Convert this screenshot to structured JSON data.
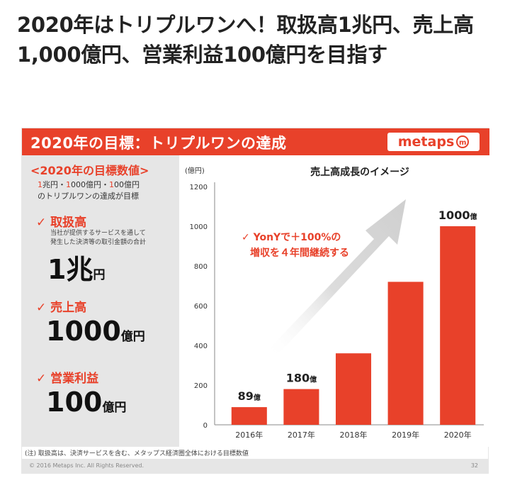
{
  "headline": "2020年はトリプルワンへ！取扱高1兆円、売上高1,000億円、営業利益100億円を目指す",
  "slide": {
    "title": "2020年の目標：トリプルワンの達成",
    "logo_text": "metaps",
    "logo_mark": "m",
    "left": {
      "heading": "<2020年の目標数値>",
      "desc_n1": "1",
      "desc_t1": "兆円・",
      "desc_n2": "1",
      "desc_t2": "000億円・",
      "desc_n3": "1",
      "desc_t3": "00億円",
      "desc_line2": "のトリプルワンの達成が目標",
      "goals": [
        {
          "label": "取扱高",
          "sub1": "当社が提供するサービスを通して",
          "sub2": "発生した決済等の取引金額の合計",
          "value": "1兆",
          "unit": "円"
        },
        {
          "label": "売上高",
          "value": "1000",
          "unit": "億円"
        },
        {
          "label": "営業利益",
          "value": "100",
          "unit": "億円"
        }
      ]
    },
    "footnote": "(注) 取扱高は、決済サービスを含む、メタップス経済圏全体における目標数値",
    "copyright": "© 2016 Metaps Inc. All Rights Reserved.",
    "page_number": "32"
  },
  "colors": {
    "accent": "#e8412a",
    "arrow": "#d8d8d8",
    "panel": "#e6e6e6"
  },
  "chart_data": {
    "type": "bar",
    "title": "売上高成長のイメージ",
    "ylabel": "(億円)",
    "xlabel": "",
    "categories": [
      "2016年",
      "2017年",
      "2018年",
      "2019年",
      "2020年"
    ],
    "values": [
      89,
      180,
      360,
      720,
      1000
    ],
    "data_labels": [
      {
        "value": "89",
        "unit": "億"
      },
      {
        "value": "180",
        "unit": "億"
      },
      null,
      null,
      {
        "value": "1000",
        "unit": "億"
      }
    ],
    "yticks": [
      0,
      200,
      400,
      600,
      800,
      1000,
      1200
    ],
    "ylim": [
      0,
      1200
    ],
    "grid": false,
    "annotation_line1": "✓ YonYで＋100%の",
    "annotation_line2": "増収を４年間継続する"
  }
}
